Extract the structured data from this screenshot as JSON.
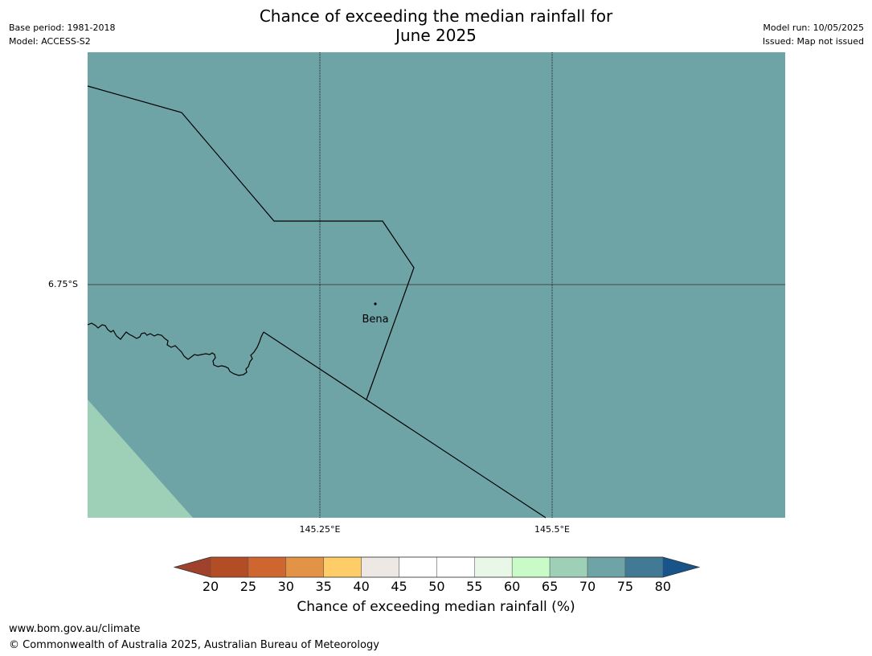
{
  "title_line1": "Chance of exceeding the median rainfall for",
  "title_line2": "June 2025",
  "meta_left": {
    "base_period": "Base period: 1981-2018",
    "model": "Model: ACCESS-S2"
  },
  "meta_right": {
    "model_run": "Model run: 10/05/2025",
    "issued": "Issued: Map not issued"
  },
  "map": {
    "lat_label": "6.75°S",
    "lon_labels": [
      "145.25°E",
      "145.5°E"
    ],
    "place_label": "Bena",
    "fill_color": "#6fa4a7",
    "lower_left_color": "#9ed0b8"
  },
  "colorbar": {
    "ticks": [
      "20",
      "25",
      "30",
      "35",
      "40",
      "45",
      "50",
      "55",
      "60",
      "65",
      "70",
      "75",
      "80"
    ],
    "colors": [
      "#a0412b",
      "#b34d26",
      "#cf6630",
      "#e39346",
      "#fecd68",
      "#ede8e4",
      "#ffffff",
      "#ffffff",
      "#e8f7e8",
      "#c8fbc8",
      "#9ed0b8",
      "#6fa4a7",
      "#427a96",
      "#18548a"
    ],
    "label": "Chance of exceeding median rainfall (%)"
  },
  "footer": {
    "url": "www.bom.gov.au/climate",
    "copyright": "© Commonwealth of Australia 2025, Australian Bureau of Meteorology"
  }
}
